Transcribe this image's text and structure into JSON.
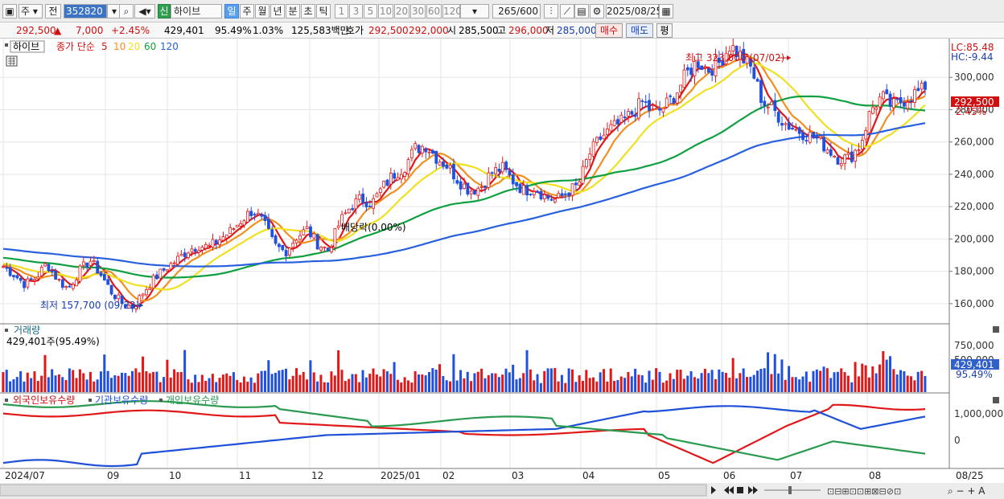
{
  "toolbar": {
    "period_type": "주",
    "market": "전",
    "stock_code": "352820",
    "badge_new": "신",
    "stock_name": "하이브",
    "period_tabs": [
      "일",
      "주",
      "월",
      "년",
      "분",
      "초",
      "틱"
    ],
    "intervals": [
      "1",
      "3",
      "5",
      "10",
      "20",
      "30",
      "60",
      "120"
    ],
    "count_display": "265",
    "count_total": "/600",
    "date": "2025/08/25"
  },
  "info": {
    "price": "292,500",
    "change": "7,000",
    "change_pct": "+2.45%",
    "volume": "429,401",
    "volume_pct": "95.49%",
    "turnover_pct": "1.03%",
    "amount": "125,583백만",
    "quote_label": "호가",
    "ask": "292,500",
    "bid": "292,000",
    "open_label": "시",
    "open": "285,500",
    "high_label": "고",
    "high": "296,000",
    "low_label": "저",
    "low": "285,000",
    "buy_label": "매수",
    "sell_label": "매도",
    "eval_label": "평"
  },
  "price_pane": {
    "name_tag": "하이브",
    "ma_label": "종가 단순",
    "ma_periods": [
      "5",
      "10",
      "20",
      "60",
      "120"
    ],
    "ma_colors": [
      "#e01818",
      "#f09020",
      "#f0e020",
      "#10a040",
      "#2860e0"
    ],
    "lc": "LC:85.48",
    "hc": "HC:-9.44",
    "high_annotation": "최고 323,000 (07/02)",
    "low_annotation": "최저 157,700 (09/23)",
    "dividend_annotation": "배당락(0.00%)",
    "current_price_tag": "292,500",
    "current_pct_tag": "2.45%",
    "ymin": 150000,
    "ymax": 320000,
    "y_ticks": [
      "160,000",
      "180,000",
      "200,000",
      "220,000",
      "240,000",
      "260,000",
      "280,000",
      "300,000"
    ]
  },
  "volume_pane": {
    "title": "거래량",
    "subtitle": "429,401주(95.49%)",
    "y_ticks": [
      "750,000",
      "500,000"
    ],
    "current_tag": "429,401",
    "current_pct": "95.49%"
  },
  "holding_pane": {
    "legend": [
      "외국인보유수량",
      "기관보유수량",
      "개인보유수량"
    ],
    "colors": [
      "#e01818",
      "#2050d8",
      "#2a9a50"
    ],
    "y_ticks": [
      "1,000,000",
      "0"
    ]
  },
  "x_axis": {
    "labels": [
      "2024/07",
      "09",
      "10",
      "11",
      "12",
      "2025/01",
      "02",
      "03",
      "04",
      "05",
      "06",
      "07",
      "08",
      "08/25"
    ]
  },
  "chart_data": {
    "type": "candlestick",
    "timeframe": "daily",
    "ohlc_sample_close": [
      183000,
      178000,
      172000,
      176000,
      185000,
      175000,
      169000,
      180000,
      187000,
      178000,
      167000,
      160000,
      157700,
      168000,
      176000,
      182000,
      187000,
      193000,
      196000,
      195000,
      200000,
      205000,
      212000,
      218000,
      210000,
      196000,
      192000,
      201000,
      206000,
      197000,
      193000,
      210000,
      220000,
      225000,
      222000,
      232000,
      240000,
      245000,
      256000,
      258000,
      250000,
      245000,
      236000,
      230000,
      232000,
      241000,
      244000,
      236000,
      230000,
      232000,
      226000,
      224000,
      229000,
      233000,
      252000,
      262000,
      268000,
      272000,
      278000,
      285000,
      277000,
      282000,
      290000,
      302000,
      310000,
      305000,
      309000,
      320000,
      313000,
      305000,
      285000,
      280000,
      272000,
      268000,
      265000,
      262000,
      256000,
      250000,
      250000,
      258000,
      280000,
      288000,
      282000,
      286000,
      290000,
      292500
    ],
    "current_price": 292500,
    "high": {
      "value": 323000,
      "date": "07/02"
    },
    "low": {
      "value": 157700,
      "date": "09/23"
    }
  }
}
